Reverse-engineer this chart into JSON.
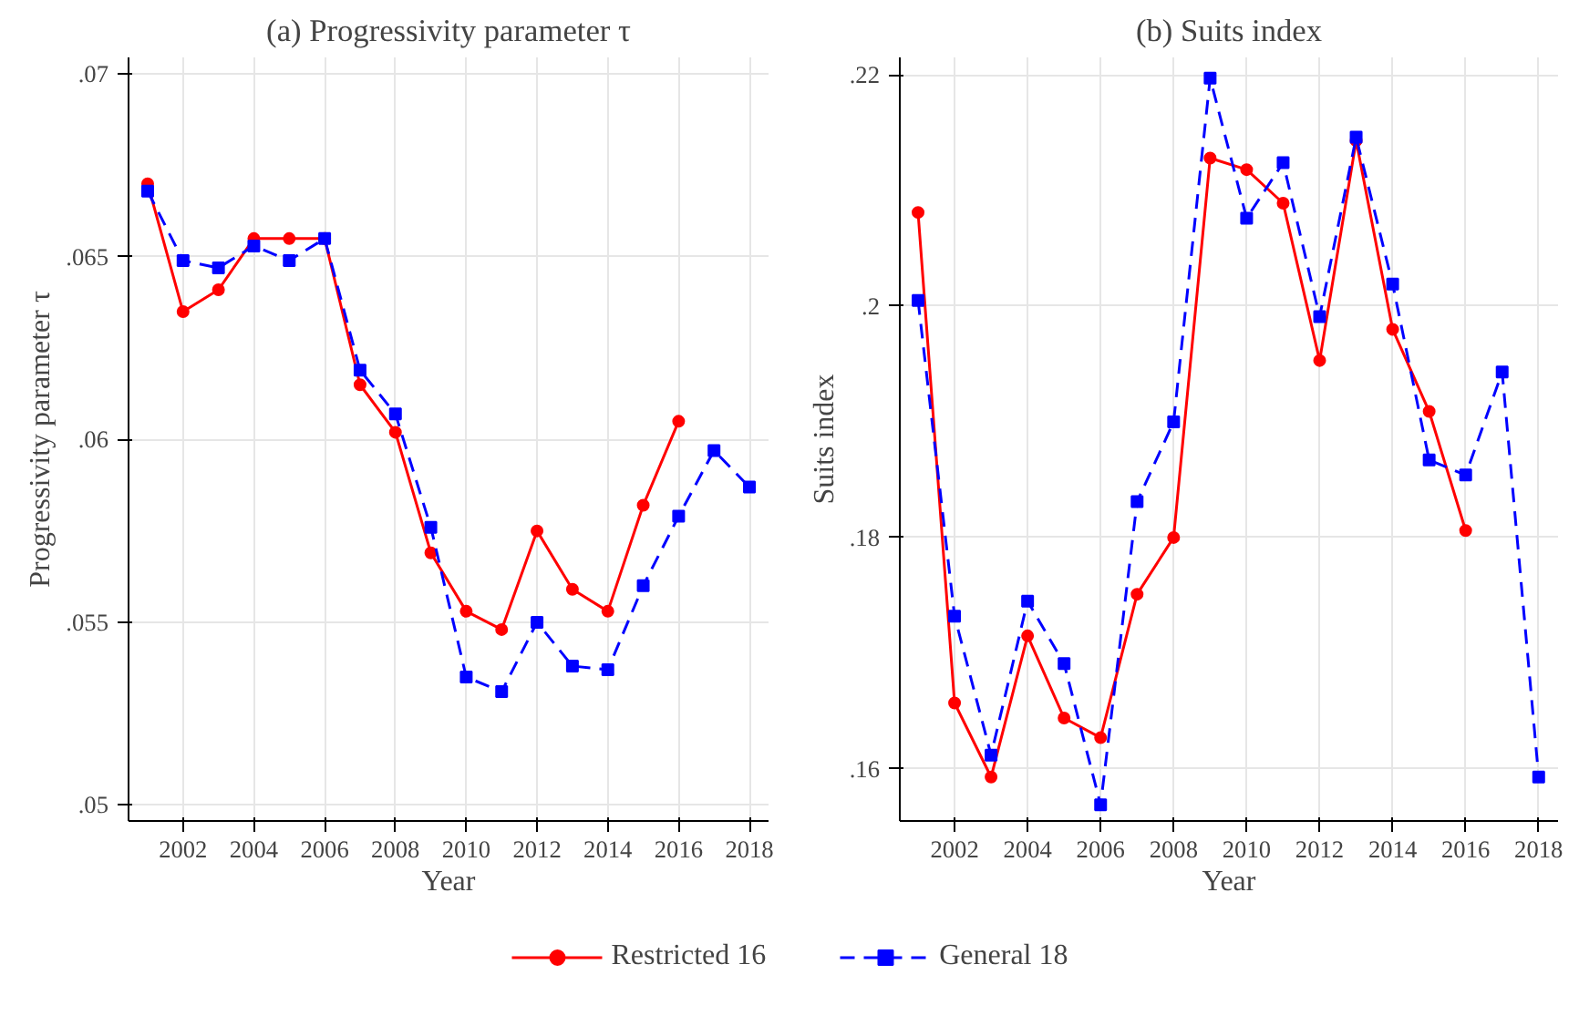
{
  "chart_data": [
    {
      "type": "line",
      "title": "(a) Progressivity parameter τ",
      "xlabel": "Year",
      "ylabel": "Progressivity parameter τ",
      "x": [
        2001,
        2002,
        2003,
        2004,
        2005,
        2006,
        2007,
        2008,
        2009,
        2010,
        2011,
        2012,
        2013,
        2014,
        2015,
        2016,
        2017,
        2018
      ],
      "series": [
        {
          "name": "Restricted 16",
          "color": "#ff0000",
          "marker": "circle",
          "line_style": "solid",
          "values": [
            0.067,
            0.0635,
            0.0641,
            0.0655,
            0.0655,
            0.0655,
            0.0615,
            0.0602,
            0.0569,
            0.0553,
            0.0548,
            0.0575,
            0.0559,
            0.0553,
            0.0582,
            0.0605,
            null,
            null
          ]
        },
        {
          "name": "General 18",
          "color": "#0000ff",
          "marker": "square",
          "line_style": "dashed",
          "values": [
            0.0668,
            0.0649,
            0.0647,
            0.0653,
            0.0649,
            0.0655,
            0.0619,
            0.0607,
            0.0576,
            0.0535,
            0.0531,
            0.055,
            0.0538,
            0.0537,
            0.056,
            0.0579,
            0.0597,
            0.0587
          ]
        }
      ],
      "xlim": [
        2000.46,
        2018.54
      ],
      "ylim": [
        0.04956,
        0.07046
      ],
      "xticks": [
        2002,
        2004,
        2006,
        2008,
        2010,
        2012,
        2014,
        2016,
        2018
      ],
      "yticks": [
        {
          "value": 0.05,
          "label": ".05"
        },
        {
          "value": 0.055,
          "label": ".055"
        },
        {
          "value": 0.06,
          "label": ".06"
        },
        {
          "value": 0.065,
          "label": ".065"
        },
        {
          "value": 0.07,
          "label": ".07"
        }
      ],
      "grid": true,
      "legend": "bottom"
    },
    {
      "type": "line",
      "title": "(b) Suits index",
      "xlabel": "Year",
      "ylabel": "Suits index",
      "x": [
        2001,
        2002,
        2003,
        2004,
        2005,
        2006,
        2007,
        2008,
        2009,
        2010,
        2011,
        2012,
        2013,
        2014,
        2015,
        2016,
        2017,
        2018
      ],
      "series": [
        {
          "color": "#ff0000",
          "marker": "circle",
          "line_style": "solid",
          "values": [
            0.2081,
            0.1657,
            0.1593,
            0.1715,
            0.1644,
            0.1627,
            0.1751,
            0.18,
            0.2128,
            0.2118,
            0.2089,
            0.1953,
            0.2143,
            0.198,
            0.1909,
            0.1806,
            null,
            null
          ]
        },
        {
          "color": "#0000ff",
          "marker": "square",
          "line_style": "dashed",
          "values": [
            0.2005,
            0.1732,
            0.1612,
            0.1745,
            0.1691,
            0.1569,
            0.1831,
            0.19,
            0.2197,
            0.2076,
            0.2124,
            0.1991,
            0.2146,
            0.2019,
            0.1867,
            0.1854,
            0.1943,
            0.1593
          ]
        }
      ],
      "xlim": [
        2000.5,
        2018.53
      ],
      "ylim": [
        0.1555,
        0.2215
      ],
      "xticks": [
        2002,
        2004,
        2006,
        2008,
        2010,
        2012,
        2014,
        2016,
        2018
      ],
      "yticks": [
        {
          "value": 0.16,
          "label": ".16"
        },
        {
          "value": 0.18,
          "label": ".18"
        },
        {
          "value": 0.2,
          "label": ".2"
        },
        {
          "value": 0.22,
          "label": ".22"
        }
      ],
      "grid": true
    }
  ]
}
